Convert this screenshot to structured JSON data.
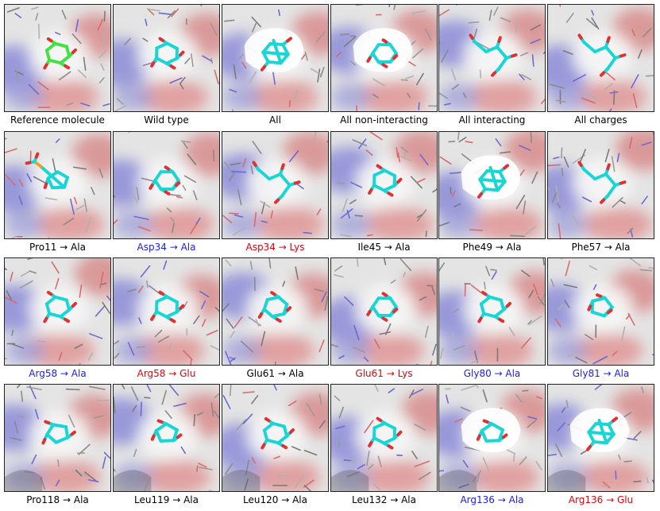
{
  "colors": {
    "black": "#000000",
    "blue": "#1a1aff",
    "red": "#e8000b",
    "ligand": "#19d6d6",
    "reference_ligand": "#44e044",
    "oxygen": "#e23030",
    "phosphorus": "#f0a020"
  },
  "panels": [
    {
      "label": "Reference molecule",
      "label_color": "black",
      "ligand": "reference"
    },
    {
      "label": "Wild type",
      "label_color": "black",
      "ligand": "ring"
    },
    {
      "label": "All",
      "label_color": "black",
      "ligand": "cage",
      "cavity": true
    },
    {
      "label": "All non-interacting",
      "label_color": "black",
      "ligand": "ring",
      "cavity": true
    },
    {
      "label": "All interacting",
      "label_color": "black",
      "ligand": "chain"
    },
    {
      "label": "All charges",
      "label_color": "black",
      "ligand": "chain"
    },
    {
      "label": "Pro11 → Ala",
      "label_color": "black",
      "ligand": "phosphate"
    },
    {
      "label": "Asp34 → Ala",
      "label_color": "blue",
      "ligand": "ring"
    },
    {
      "label": "Asp34 → Lys",
      "label_color": "red",
      "ligand": "chain"
    },
    {
      "label": "Ile45 → Ala",
      "label_color": "black",
      "ligand": "ring"
    },
    {
      "label": "Phe49 → Ala",
      "label_color": "black",
      "ligand": "cage",
      "cavity": true
    },
    {
      "label": "Phe57 → Ala",
      "label_color": "black",
      "ligand": "chain"
    },
    {
      "label": "Arg58 → Ala",
      "label_color": "blue",
      "ligand": "ring"
    },
    {
      "label": "Arg58 → Glu",
      "label_color": "red",
      "ligand": "ring"
    },
    {
      "label": "Glu61 → Ala",
      "label_color": "black",
      "ligand": "ring"
    },
    {
      "label": "Glu61 → Lys",
      "label_color": "red",
      "ligand": "ring"
    },
    {
      "label": "Gly80 → Ala",
      "label_color": "blue",
      "ligand": "ring"
    },
    {
      "label": "Gly81 → Ala",
      "label_color": "blue",
      "ligand": "pentagon"
    },
    {
      "label": "Pro118 → Ala",
      "label_color": "black",
      "ligand": "pentagon"
    },
    {
      "label": "Leu119 → Ala",
      "label_color": "black",
      "ligand": "pentagon"
    },
    {
      "label": "Leu120 → Ala",
      "label_color": "black",
      "ligand": "ring"
    },
    {
      "label": "Leu132 → Ala",
      "label_color": "black",
      "ligand": "ring"
    },
    {
      "label": "Arg136 → Ala",
      "label_color": "blue",
      "ligand": "pentagon",
      "cavity": true
    },
    {
      "label": "Arg136 → Glu",
      "label_color": "red",
      "ligand": "cage",
      "cavity": true
    }
  ]
}
